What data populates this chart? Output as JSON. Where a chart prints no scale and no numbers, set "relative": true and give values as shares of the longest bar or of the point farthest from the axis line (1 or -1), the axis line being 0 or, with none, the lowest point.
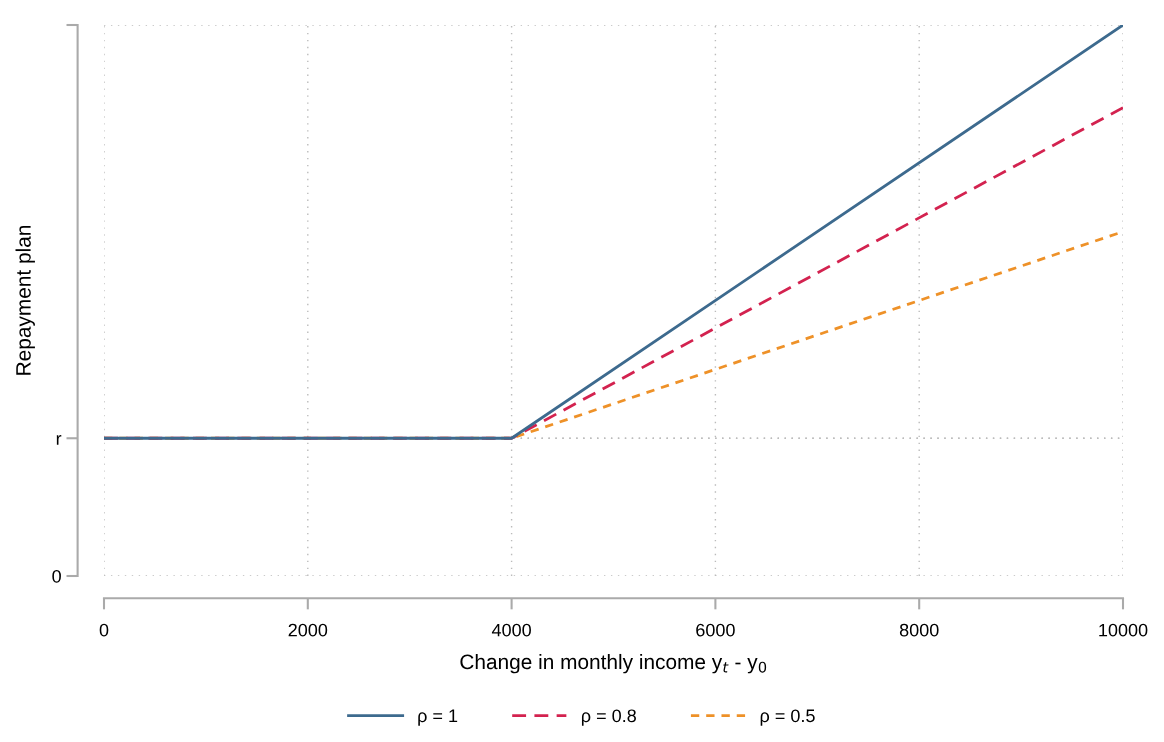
{
  "chart_data": {
    "type": "line",
    "relative": true,
    "xlabel": "Change in monthly income y$_{t}$ - y$_{0}$",
    "ylabel": "Repayment plan",
    "x": [
      0,
      4000,
      10000
    ],
    "series": [
      {
        "name": "ρ = 1",
        "color": "#3d6a8e",
        "line_style": "solid",
        "values": [
          0.25,
          0.25,
          1
        ]
      },
      {
        "name": "ρ = 0.8",
        "color": "#d3224f",
        "line_style": "dashed",
        "values": [
          0.25,
          0.25,
          0.85
        ]
      },
      {
        "name": "ρ = 0.5",
        "color": "#ee9128",
        "line_style": "dotted",
        "values": [
          0.25,
          0.25,
          0.625
        ]
      }
    ],
    "xlim": [
      0,
      10000
    ],
    "xticks": [
      0,
      2000,
      4000,
      6000,
      8000,
      10000
    ],
    "annotations": [
      "0"
    ],
    "ref_lines": [
      {
        "axis": "y",
        "value": 0.25,
        "label": "r",
        "color": "#bbbbbb",
        "line_style": "dotted"
      }
    ],
    "grid": true,
    "legend": "bottom",
    "marker": "none"
  }
}
